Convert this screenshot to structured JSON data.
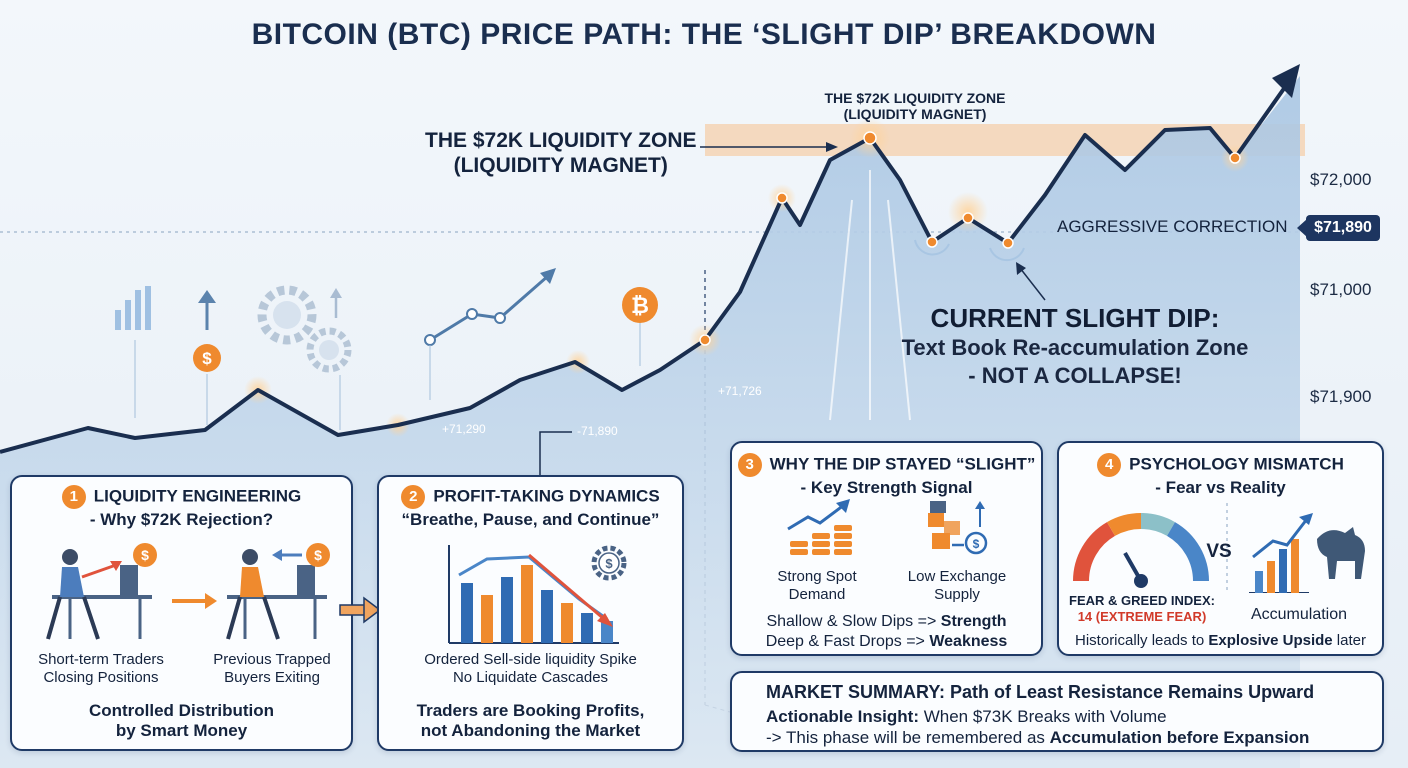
{
  "title": "BITCOIN (BTC) PRICE PATH: THE ‘SLIGHT DIP’ BREAKDOWN",
  "zone_label_left": [
    "THE $72K LIQUIDITY ZONE",
    "(LIQUIDITY MAGNET)"
  ],
  "zone_label_top": [
    "THE $72K LIQUIDITY ZONE",
    "(LIQUIDITY MAGNET)"
  ],
  "aggressive_label": "AGGRESSIVE CORRECTION",
  "current_price": "$71,890",
  "axis_labels": [
    "$72,000",
    "$71,000",
    "$71,900"
  ],
  "dip_title": [
    "CURRENT SLIGHT DIP:",
    "Text Book Re-accumulation Zone",
    "- NOT A COLLAPSE!"
  ],
  "annotations": [
    "+71,290",
    "-71,890",
    "+71,726"
  ],
  "colors": {
    "navy": "#1f3a66",
    "orange": "#ef8a2e",
    "zone": "#f6c9a0",
    "fill": "#bcd4ea"
  },
  "panel1": {
    "num": "1",
    "title": [
      "LIQUIDITY ENGINEERING",
      "- Why $72K Rejection?"
    ],
    "left_caption": [
      "Short-term Traders",
      "Closing Positions"
    ],
    "right_caption": [
      "Previous Trapped",
      "Buyers Exiting"
    ],
    "footer": [
      "Controlled Distribution",
      "by Smart Money"
    ]
  },
  "panel2": {
    "num": "2",
    "title": "PROFIT-TAKING DYNAMICS",
    "subtitle": "“Breathe, Pause, and Continue”",
    "caption": [
      "Ordered Sell-side liquidity Spike",
      "No Liquidate Cascades"
    ],
    "footer": [
      "Traders are Booking Profits,",
      "not Abandoning the Market"
    ]
  },
  "panel3": {
    "num": "3",
    "title": [
      "WHY THE DIP STAYED “SLIGHT”",
      "- Key Strength Signal"
    ],
    "left_caption": [
      "Strong Spot",
      "Demand"
    ],
    "right_caption": [
      "Low Exchange",
      "Supply"
    ],
    "line1": {
      "text": "Shallow & Slow Dips => ",
      "bold": "Strength"
    },
    "line2": {
      "text": "Deep & Fast Drops => ",
      "bold": "Weakness"
    }
  },
  "panel4": {
    "num": "4",
    "title": [
      "PSYCHOLOGY MISMATCH",
      "- Fear vs Reality"
    ],
    "gauge_label": "FEAR & GREED INDEX:",
    "gauge_value": "14 (EXTREME FEAR)",
    "vs": "VS",
    "right_caption": "Accumulation",
    "footer": {
      "text": "Historically leads to ",
      "bold": "Explosive Upside",
      "tail": " later"
    }
  },
  "summary": {
    "title": "MARKET SUMMARY: Path of Least Resistance Remains Upward",
    "insight_label": "Actionable Insight:",
    "insight_text": " When $73K Breaks with Volume",
    "line3_text": "-> This phase will be remembered as ",
    "line3_bold": "Accumulation before Expansion"
  }
}
